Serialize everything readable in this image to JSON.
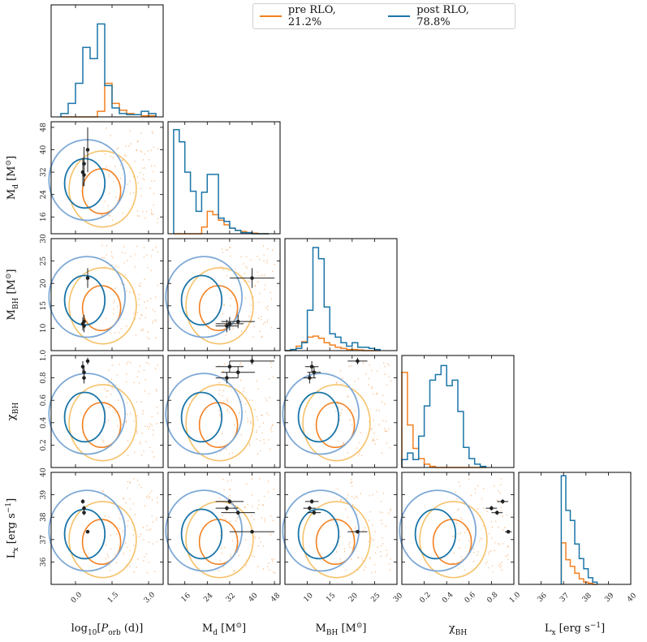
{
  "colors": {
    "pre": "#f28020",
    "pre_light": "#f5c26b",
    "post": "#1a75a8",
    "post_light": "#7ea9d6",
    "obs": "#222222"
  },
  "legend": {
    "pre_label": "pre RLO, 21.2%",
    "post_label": "post RLO, 78.8%",
    "placement": "top-right"
  },
  "variables": [
    {
      "key": "porb",
      "label": "log₁₀[P_orb (d)]",
      "label_parts": [
        "log",
        "10",
        "[",
        "P",
        "orb",
        " (d)]"
      ],
      "range": [
        -1.0,
        3.6
      ],
      "ticks": [
        0.0,
        1.5,
        3.0
      ],
      "tick_labels": [
        "0.0",
        "1.5",
        "3.0"
      ]
    },
    {
      "key": "md",
      "label": "M_d [M⊙]",
      "label_parts": [
        "M",
        "d",
        " [M",
        "⊙",
        "]"
      ],
      "range": [
        10,
        50
      ],
      "ticks": [
        16,
        24,
        32,
        40,
        48
      ],
      "tick_labels": [
        "16",
        "24",
        "32",
        "40",
        "48"
      ]
    },
    {
      "key": "mbh",
      "label": "M_BH [M⊙]",
      "label_parts": [
        "M",
        "BH",
        " [M",
        "⊙",
        "]"
      ],
      "range": [
        5,
        30
      ],
      "ticks": [
        10,
        15,
        20,
        25,
        30
      ],
      "tick_labels": [
        "10",
        "15",
        "20",
        "25",
        "30"
      ]
    },
    {
      "key": "chi",
      "label": "χ_BH",
      "label_parts": [
        "χ",
        "BH",
        "",
        "",
        ""
      ],
      "range": [
        0.0,
        1.0
      ],
      "ticks": [
        0.2,
        0.4,
        0.6,
        0.8,
        1.0
      ],
      "tick_labels": [
        "0.2",
        "0.4",
        "0.6",
        "0.8",
        "1.0"
      ]
    },
    {
      "key": "lx",
      "label": "L_x [erg s⁻¹]",
      "label_parts": [
        "L",
        "x",
        " [erg s",
        "−1",
        "]"
      ],
      "range": [
        35,
        40
      ],
      "ticks": [
        36,
        37,
        38,
        39,
        40
      ],
      "tick_labels": [
        "36",
        "37",
        "38",
        "39",
        "40"
      ]
    }
  ],
  "chart_data": {
    "type": "corner",
    "legend": [
      "pre RLO, 21.2%",
      "post RLO, 78.8%"
    ],
    "marginals": [
      {
        "var": "porb",
        "bin_edges": [
          -0.6,
          -0.3,
          0.0,
          0.3,
          0.6,
          0.9,
          1.2,
          1.5,
          1.8,
          2.1,
          2.4,
          2.7,
          3.0,
          3.3
        ],
        "pre": [
          0,
          0,
          0,
          0,
          0,
          0.05,
          0.3,
          0.12,
          0.06,
          0.03,
          0.02,
          0.01,
          0.01
        ],
        "post": [
          0.03,
          0.12,
          0.3,
          0.62,
          0.52,
          0.83,
          0.28,
          0.08,
          0.03,
          0.02,
          0.02,
          0.05,
          0.03
        ]
      },
      {
        "var": "md",
        "bin_edges": [
          12,
          14,
          16,
          18,
          20,
          22,
          24,
          26,
          28,
          30,
          32,
          34,
          36,
          38,
          40,
          42,
          44,
          46
        ],
        "pre": [
          0,
          0,
          0,
          0,
          0,
          0.06,
          0.2,
          0.17,
          0.12,
          0.08,
          0.05,
          0.03,
          0.02,
          0.01,
          0.005,
          0,
          0
        ],
        "post": [
          0.93,
          0.82,
          0.55,
          0.38,
          0.2,
          0.37,
          0.53,
          0.53,
          0.14,
          0.11,
          0.05,
          0.03,
          0.01,
          0.01,
          0,
          0,
          0
        ]
      },
      {
        "var": "mbh",
        "bin_edges": [
          5,
          6.25,
          7.5,
          8.75,
          10,
          11.25,
          12.5,
          13.75,
          15,
          16.25,
          17.5,
          18.75,
          20,
          21.25,
          22.5,
          23.75,
          25,
          26.25
        ],
        "pre": [
          0,
          0.01,
          0.04,
          0.08,
          0.12,
          0.13,
          0.11,
          0.07,
          0.05,
          0.03,
          0.02,
          0.01,
          0.01,
          0.005,
          0,
          0,
          0
        ],
        "post": [
          0,
          0.01,
          0.02,
          0.07,
          0.36,
          0.92,
          0.82,
          0.39,
          0.15,
          0.12,
          0.07,
          0.04,
          0.07,
          0.03,
          0.03,
          0.02,
          0.01
        ]
      },
      {
        "var": "chi",
        "bin_edges": [
          0,
          0.05,
          0.1,
          0.15,
          0.2,
          0.25,
          0.3,
          0.35,
          0.4,
          0.45,
          0.5,
          0.55,
          0.6,
          0.65,
          0.7,
          0.75
        ],
        "pre": [
          0.85,
          0.38,
          0.17,
          0.08,
          0.03,
          0.01,
          0,
          0,
          0,
          0,
          0,
          0,
          0,
          0,
          0
        ],
        "post": [
          0.07,
          0.13,
          0.07,
          0.28,
          0.55,
          0.78,
          0.83,
          0.91,
          0.73,
          0.78,
          0.5,
          0.18,
          0.08,
          0.03,
          0.01
        ]
      },
      {
        "var": "lx",
        "bin_edges": [
          36.9,
          37.1,
          37.3,
          37.5,
          37.7,
          37.9,
          38.1,
          38.3,
          38.5
        ],
        "pre": [
          0.37,
          0.22,
          0.16,
          0.1,
          0.05,
          0.02,
          0.01,
          0
        ],
        "post": [
          0.97,
          0.66,
          0.57,
          0.36,
          0.23,
          0.14,
          0.06,
          0.02
        ]
      }
    ],
    "observed": [
      {
        "porb": 0.5,
        "porb_err": 0.05,
        "md": 40.0,
        "md_err": 8.0,
        "mbh": 21.2,
        "mbh_err": 2.2,
        "chi": 0.95,
        "chi_err": 0.03,
        "lx": 37.35,
        "lx_err": 0.05
      },
      {
        "porb": 0.35,
        "porb_err": 0.05,
        "md": 35.0,
        "md_err": 6.0,
        "mbh": 11.5,
        "mbh_err": 1.5,
        "chi": 0.85,
        "chi_err": 0.05,
        "lx": 38.2,
        "lx_err": 0.1
      },
      {
        "porb": 0.3,
        "porb_err": 0.05,
        "md": 32.0,
        "md_err": 5.0,
        "mbh": 11.0,
        "mbh_err": 1.5,
        "chi": 0.9,
        "chi_err": 0.05,
        "lx": 38.7,
        "lx_err": 0.1
      },
      {
        "porb": 0.35,
        "porb_err": 0.05,
        "md": 31.0,
        "md_err": 4.0,
        "mbh": 10.5,
        "mbh_err": 1.4,
        "chi": 0.8,
        "chi_err": 0.05,
        "lx": 38.4,
        "lx_err": 0.1
      }
    ]
  }
}
